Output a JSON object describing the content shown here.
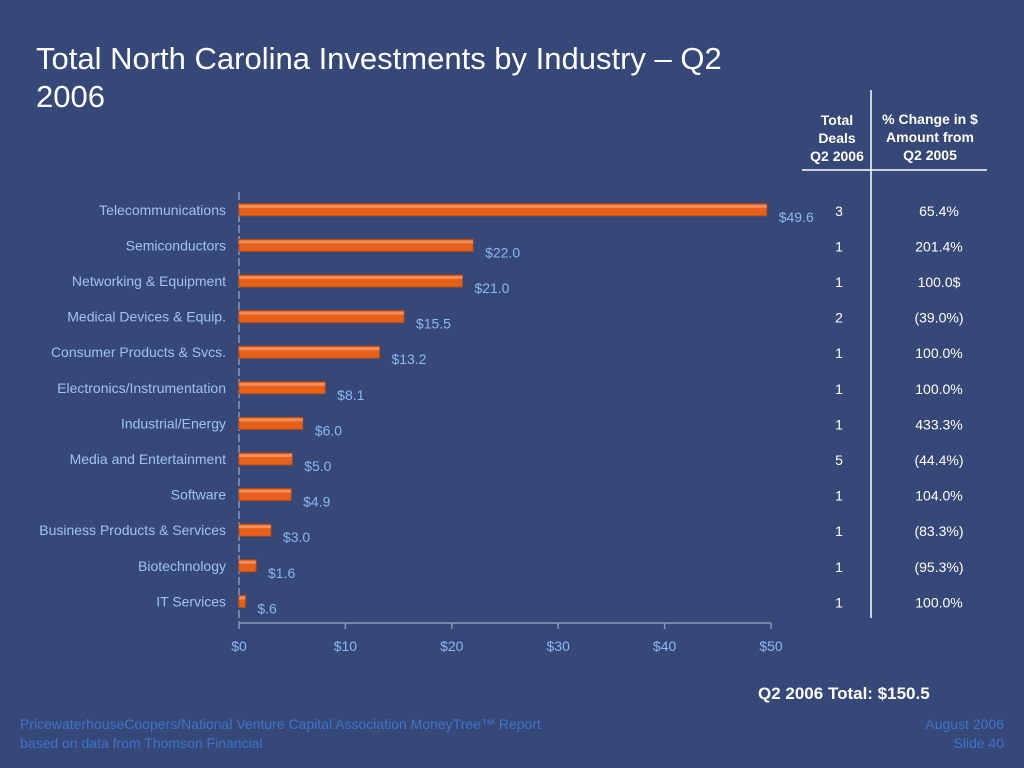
{
  "title": "Total North Carolina Investments by Industry – Q2 2006",
  "table": {
    "col1_header": [
      "Total",
      "Deals",
      "Q2 2006"
    ],
    "col2_header": [
      "% Change in $",
      "Amount from",
      "Q2 2005"
    ]
  },
  "colors": {
    "background": "#364878",
    "bar": "#e8611a",
    "bar_dark": "#b84a10",
    "category_text": "#9fc3f0",
    "value_text": "#8ab8f0",
    "axis_text": "#8ab8f0",
    "table_text": "#ffffff"
  },
  "chart_data": {
    "type": "bar",
    "orientation": "horizontal",
    "categories": [
      "Telecommunications",
      "Semiconductors",
      "Networking & Equipment",
      "Medical Devices & Equip.",
      "Consumer Products & Svcs.",
      "Electronics/Instrumentation",
      "Industrial/Energy",
      "Media and Entertainment",
      "Software",
      "Business Products & Services",
      "Biotechnology",
      "IT Services"
    ],
    "values": [
      49.6,
      22.0,
      21.0,
      15.5,
      13.2,
      8.1,
      6.0,
      5.0,
      4.9,
      3.0,
      1.6,
      0.6
    ],
    "value_labels": [
      "$49.6",
      "$22.0",
      "$21.0",
      "$15.5",
      "$13.2",
      "$8.1",
      "$6.0",
      "$5.0",
      "$4.9",
      "$3.0",
      "$1.6",
      "$.6"
    ],
    "total_deals": [
      "3",
      "1",
      "1",
      "2",
      "1",
      "1",
      "1",
      "5",
      "1",
      "1",
      "1",
      "1"
    ],
    "pct_change": [
      "65.4%",
      "201.4%",
      "100.0$",
      "(39.0%)",
      "100.0%",
      "100.0%",
      "433.3%",
      "(44.4%)",
      "104.0%",
      "(83.3%)",
      "(95.3%)",
      "100.0%"
    ],
    "xlim": [
      0,
      50
    ],
    "x_ticks": [
      0,
      10,
      20,
      30,
      40,
      50
    ],
    "x_tick_labels": [
      "$0",
      "$10",
      "$20",
      "$30",
      "$40",
      "$50"
    ],
    "grid": false,
    "legend": "none"
  },
  "summary": {
    "total": "Q2 2006 Total: $150.5"
  },
  "footer": {
    "left_line1": "PricewaterhouseCoopers/National Venture Capital Association MoneyTree™ Report",
    "left_line2": "based on data from Thomson Financial",
    "date": "August 2006",
    "slide": "Slide 40"
  }
}
